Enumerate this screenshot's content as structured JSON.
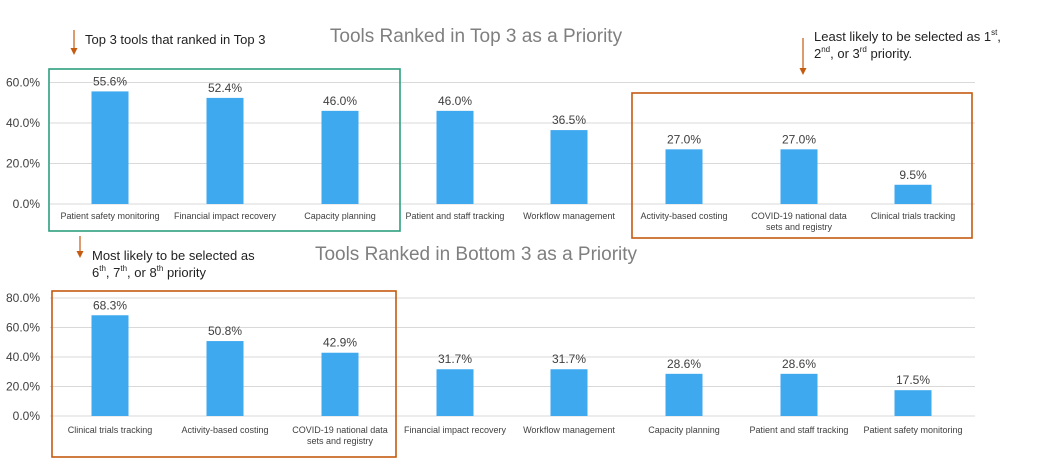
{
  "colors": {
    "bar": "#3fa9f0",
    "grid": "#d9d9d9",
    "green_box": "#2e9e7f",
    "orange_box": "#c55a11",
    "arrow": "#c55a11"
  },
  "annotations": {
    "top3_tools": "Top 3 tools that ranked in Top 3",
    "least_likely_line1_pre": "Least likely to be selected as 1",
    "least_likely_line1_sup": "st",
    "least_likely_line1_post": ",",
    "least_likely_line2_a": "2",
    "least_likely_line2_sup1": "nd",
    "least_likely_line2_b": ", or 3",
    "least_likely_line2_sup2": "rd",
    "least_likely_line2_c": " priority.",
    "most_likely_line1": "Most likely to be selected as",
    "most_likely_line2_a": "6",
    "most_likely_line2_sup1": "th",
    "most_likely_line2_b": ", 7",
    "most_likely_line2_sup2": "th",
    "most_likely_line2_c": ", or 8",
    "most_likely_line2_sup3": "th",
    "most_likely_line2_d": " priority"
  },
  "chart_data": [
    {
      "type": "bar",
      "title": "Tools Ranked in Top 3 as a Priority",
      "categories": [
        "Patient safety monitoring",
        "Financial impact recovery",
        "Capacity planning",
        "Patient and staff tracking",
        "Workflow management",
        "Activity-based costing",
        "COVID-19 national data sets and registry",
        "Clinical trials tracking"
      ],
      "values": [
        55.6,
        52.4,
        46.0,
        46.0,
        36.5,
        27.0,
        27.0,
        9.5
      ],
      "value_labels": [
        "55.6%",
        "52.4%",
        "46.0%",
        "46.0%",
        "36.5%",
        "27.0%",
        "27.0%",
        "9.5%"
      ],
      "yticks": [
        "0.0%",
        "20.0%",
        "40.0%",
        "60.0%"
      ],
      "ylim": [
        0,
        60
      ],
      "grid": true
    },
    {
      "type": "bar",
      "title": "Tools Ranked in Bottom 3 as a Priority",
      "categories": [
        "Clinical trials tracking",
        "Activity-based costing",
        "COVID-19 national data sets and registry",
        "Financial impact recovery",
        "Workflow management",
        "Capacity planning",
        "Patient and staff tracking",
        "Patient safety monitoring"
      ],
      "values": [
        68.3,
        50.8,
        42.9,
        31.7,
        31.7,
        28.6,
        28.6,
        17.5
      ],
      "value_labels": [
        "68.3%",
        "50.8%",
        "42.9%",
        "31.7%",
        "31.7%",
        "28.6%",
        "28.6%",
        "17.5%"
      ],
      "yticks": [
        "0.0%",
        "20.0%",
        "40.0%",
        "60.0%",
        "80.0%"
      ],
      "ylim": [
        0,
        80
      ],
      "grid": true
    }
  ]
}
